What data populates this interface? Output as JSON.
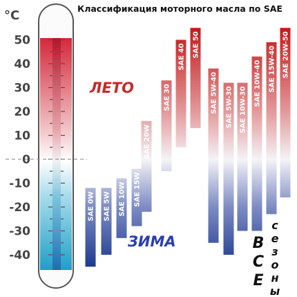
{
  "chart_data": {
    "type": "bar",
    "title": "Классификация моторного масла по SAE",
    "unit": "°C",
    "ylim": [
      -45,
      55
    ],
    "yticks": [
      50,
      40,
      30,
      20,
      10,
      0,
      -10,
      -20,
      -30,
      -40
    ],
    "ytick_labels": [
      "50",
      "40",
      "30",
      "20",
      "10",
      "0",
      "-10",
      "-20",
      "-30",
      "-40"
    ],
    "categories": [
      "SAE 0W",
      "SAE 5W",
      "SAE 10W",
      "SAE 15W",
      "SAE 20W",
      "SAE 30",
      "SAE 40",
      "SAE 50",
      "SAE 5W-40",
      "SAE 5W-30",
      "SAE 10W-30",
      "SAE 10W-40",
      "SAE 15W-40",
      "SAE 20W-50"
    ],
    "series": [
      {
        "name": "",
        "values": [
          [
            -45,
            -12
          ],
          [
            -40,
            -12
          ],
          [
            -33,
            -8
          ],
          [
            -28,
            -4
          ],
          [
            -22,
            16
          ],
          [
            -5,
            33
          ],
          [
            5,
            50
          ],
          [
            13,
            55
          ],
          [
            -35,
            38
          ],
          [
            -40,
            32
          ],
          [
            -30,
            32
          ],
          [
            -30,
            43
          ],
          [
            -23,
            49
          ],
          [
            -16,
            55
          ]
        ]
      }
    ],
    "annotations": {
      "summer": "ЛЕТО",
      "winter": "ЗИМА",
      "allseason_caps": [
        "В",
        "С",
        "Е"
      ],
      "allseason_small": [
        "с",
        "е",
        "з",
        "о",
        "н",
        "ы"
      ]
    }
  },
  "colors": {
    "hot": "#c41a1c",
    "cold": "#1d3a8f",
    "summer_text": "#c8282a",
    "winter_text": "#2a3db0",
    "tube_hot": "#d4283a",
    "tube_cold": "#27a9cc"
  }
}
